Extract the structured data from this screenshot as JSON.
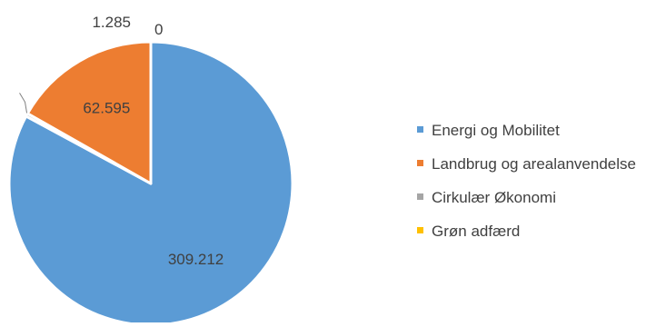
{
  "chart_data": {
    "type": "pie",
    "title": "",
    "start_angle_deg": 0,
    "direction": "clockwise",
    "legend_position": "right",
    "slices": [
      {
        "label": "Energi og Mobilitet",
        "value": 309.212,
        "value_label": "309.212",
        "color": "#5B9BD5",
        "label_color": "#404040"
      },
      {
        "label": "Grøn adfærd",
        "value": 0,
        "value_label": "0",
        "color": "#FFC000",
        "label_color": "#404040"
      },
      {
        "label": "Cirkulær Økonomi",
        "value": 1.285,
        "value_label": "1.285",
        "color": "#A5A5A5",
        "label_color": "#404040"
      },
      {
        "label": "Landbrug og arealanvendelse",
        "value": 62.595,
        "value_label": "62.595",
        "color": "#ED7D31",
        "label_color": "#404040"
      }
    ],
    "legend": [
      {
        "label": "Energi og Mobilitet",
        "color": "#5B9BD5"
      },
      {
        "label": "Landbrug og arealanvendelse",
        "color": "#ED7D31"
      },
      {
        "label": "Cirkulær Økonomi",
        "color": "#A5A5A5"
      },
      {
        "label": "Grøn adfærd",
        "color": "#FFC000"
      }
    ]
  }
}
